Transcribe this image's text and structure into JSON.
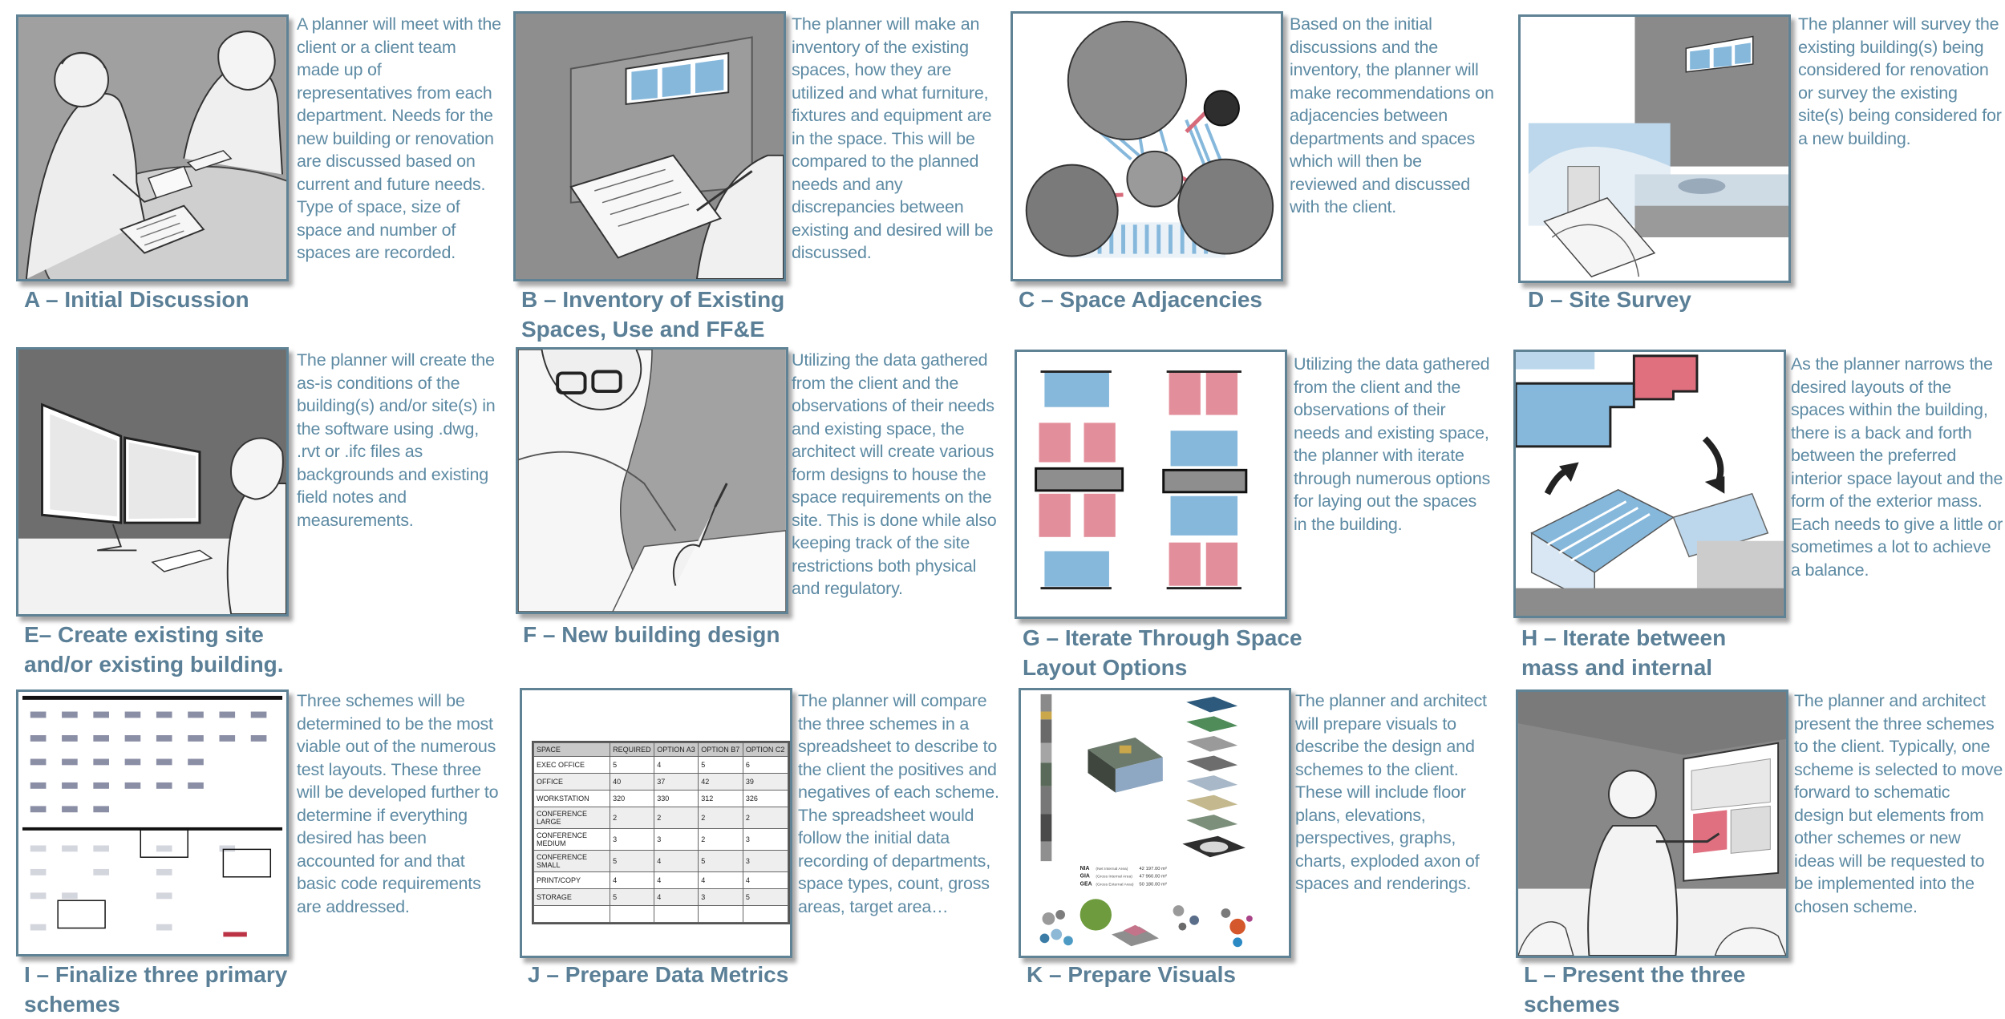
{
  "panels": [
    {
      "id": "A",
      "caption": "A – Initial Discussion",
      "description": "A planner will meet with the client or a client team made up of representatives from each department.  Needs for the new building or renovation are discussed based on current and future needs.  Type of space, size of space and number of spaces are recorded."
    },
    {
      "id": "B",
      "caption": "B – Inventory of Existing Spaces, Use and FF&E",
      "description": "The planner will make an inventory of the existing spaces, how they are utilized and what furniture, fixtures and equipment are in the space.  This will be compared to the planned needs and any discrepancies between existing and desired will be discussed."
    },
    {
      "id": "C",
      "caption": "C – Space Adjacencies",
      "description": "Based on the initial discussions and the inventory, the planner will make recommendations on adjacencies between departments and spaces which will then be reviewed and discussed with the client."
    },
    {
      "id": "D",
      "caption": "D – Site Survey",
      "description": "The planner will survey the existing building(s) being considered for renovation or survey the existing site(s) being considered for a new building."
    },
    {
      "id": "E",
      "caption": "E– Create existing site and/or existing building.",
      "description": "The planner will create the as-is conditions of the building(s) and/or site(s) in the software using .dwg, .rvt or .ifc files as backgrounds and existing field notes and measurements."
    },
    {
      "id": "F",
      "caption": "F – New building design",
      "description": "Utilizing the data gathered from the client and the observations of their needs and existing space, the architect will create various form designs to house the space requirements on the site.  This is done while also keeping track of the site restrictions both physical and regulatory."
    },
    {
      "id": "G",
      "caption": "G – Iterate Through Space Layout  Options",
      "description": "Utilizing the data gathered from the client and the observations of their needs and existing space, the planner with iterate through numerous options for laying out the spaces in the building."
    },
    {
      "id": "H",
      "caption": "H – Iterate between mass and internal spaces",
      "description": "As the planner narrows the desired layouts of the spaces within the building, there is a back and forth between the preferred interior space layout and the form of the exterior mass.  Each needs to give a little or sometimes a lot to achieve a balance."
    },
    {
      "id": "I",
      "caption": "I – Finalize  three primary schemes",
      "description": "Three schemes will be determined to be the most viable out of the numerous test layouts.  These three will be developed further to determine if everything desired has been accounted for and that basic code requirements are addressed."
    },
    {
      "id": "J",
      "caption": "J – Prepare Data Metrics",
      "description": "The planner will compare the three schemes in a spreadsheet to describe to the client the positives and negatives of each scheme.  The spreadsheet would follow the initial data recording of departments, space types, count, gross areas, target area…"
    },
    {
      "id": "K",
      "caption": "K – Prepare Visuals",
      "description": "The planner and architect will prepare visuals to describe the design and schemes to the client.  These will include floor plans, elevations, perspectives, graphs, charts, exploded axon of spaces and renderings."
    },
    {
      "id": "L",
      "caption": "L – Present the three schemes",
      "description": "The planner and architect present the three schemes to the client.  Typically, one scheme is selected to move forward to schematic design but elements from other schemes or new ideas will be requested to be implemented into the chosen scheme."
    }
  ],
  "spreadsheet": {
    "headers": [
      "SPACE",
      "REQUIRED",
      "OPTION A3",
      "OPTION B7",
      "OPTION C2"
    ],
    "rows": [
      [
        "EXEC OFFICE",
        "5",
        "4",
        "5",
        "6"
      ],
      [
        "OFFICE",
        "40",
        "37",
        "42",
        "39"
      ],
      [
        "WORKSTATION",
        "320",
        "330",
        "312",
        "326"
      ],
      [
        "CONFERENCE LARGE",
        "2",
        "2",
        "2",
        "2"
      ],
      [
        "CONFERENCE MEDIUM",
        "3",
        "3",
        "2",
        "3"
      ],
      [
        "CONFERENCE SMALL",
        "5",
        "4",
        "5",
        "3"
      ],
      [
        "PRINT/COPY",
        "4",
        "4",
        "4",
        "4"
      ],
      [
        "STORAGE",
        "5",
        "4",
        "3",
        "5"
      ],
      [
        "",
        "",
        "",
        "",
        ""
      ]
    ]
  },
  "areas": [
    {
      "code": "NIA",
      "name": "(Net Internal Area)",
      "value": "42 197.00 m²"
    },
    {
      "code": "GIA",
      "name": "(Gross Internal Area)",
      "value": "47 960.00 m²"
    },
    {
      "code": "GEA",
      "name": "(Gross External Area)",
      "value": "50 180.00 m²"
    }
  ],
  "colors": {
    "frame": "#5f8294",
    "text": "#5d8aa3",
    "caption": "#5a7f96",
    "blue": "#86b8dc",
    "pink": "#dc8b96",
    "gray": "#7d7d7d"
  }
}
